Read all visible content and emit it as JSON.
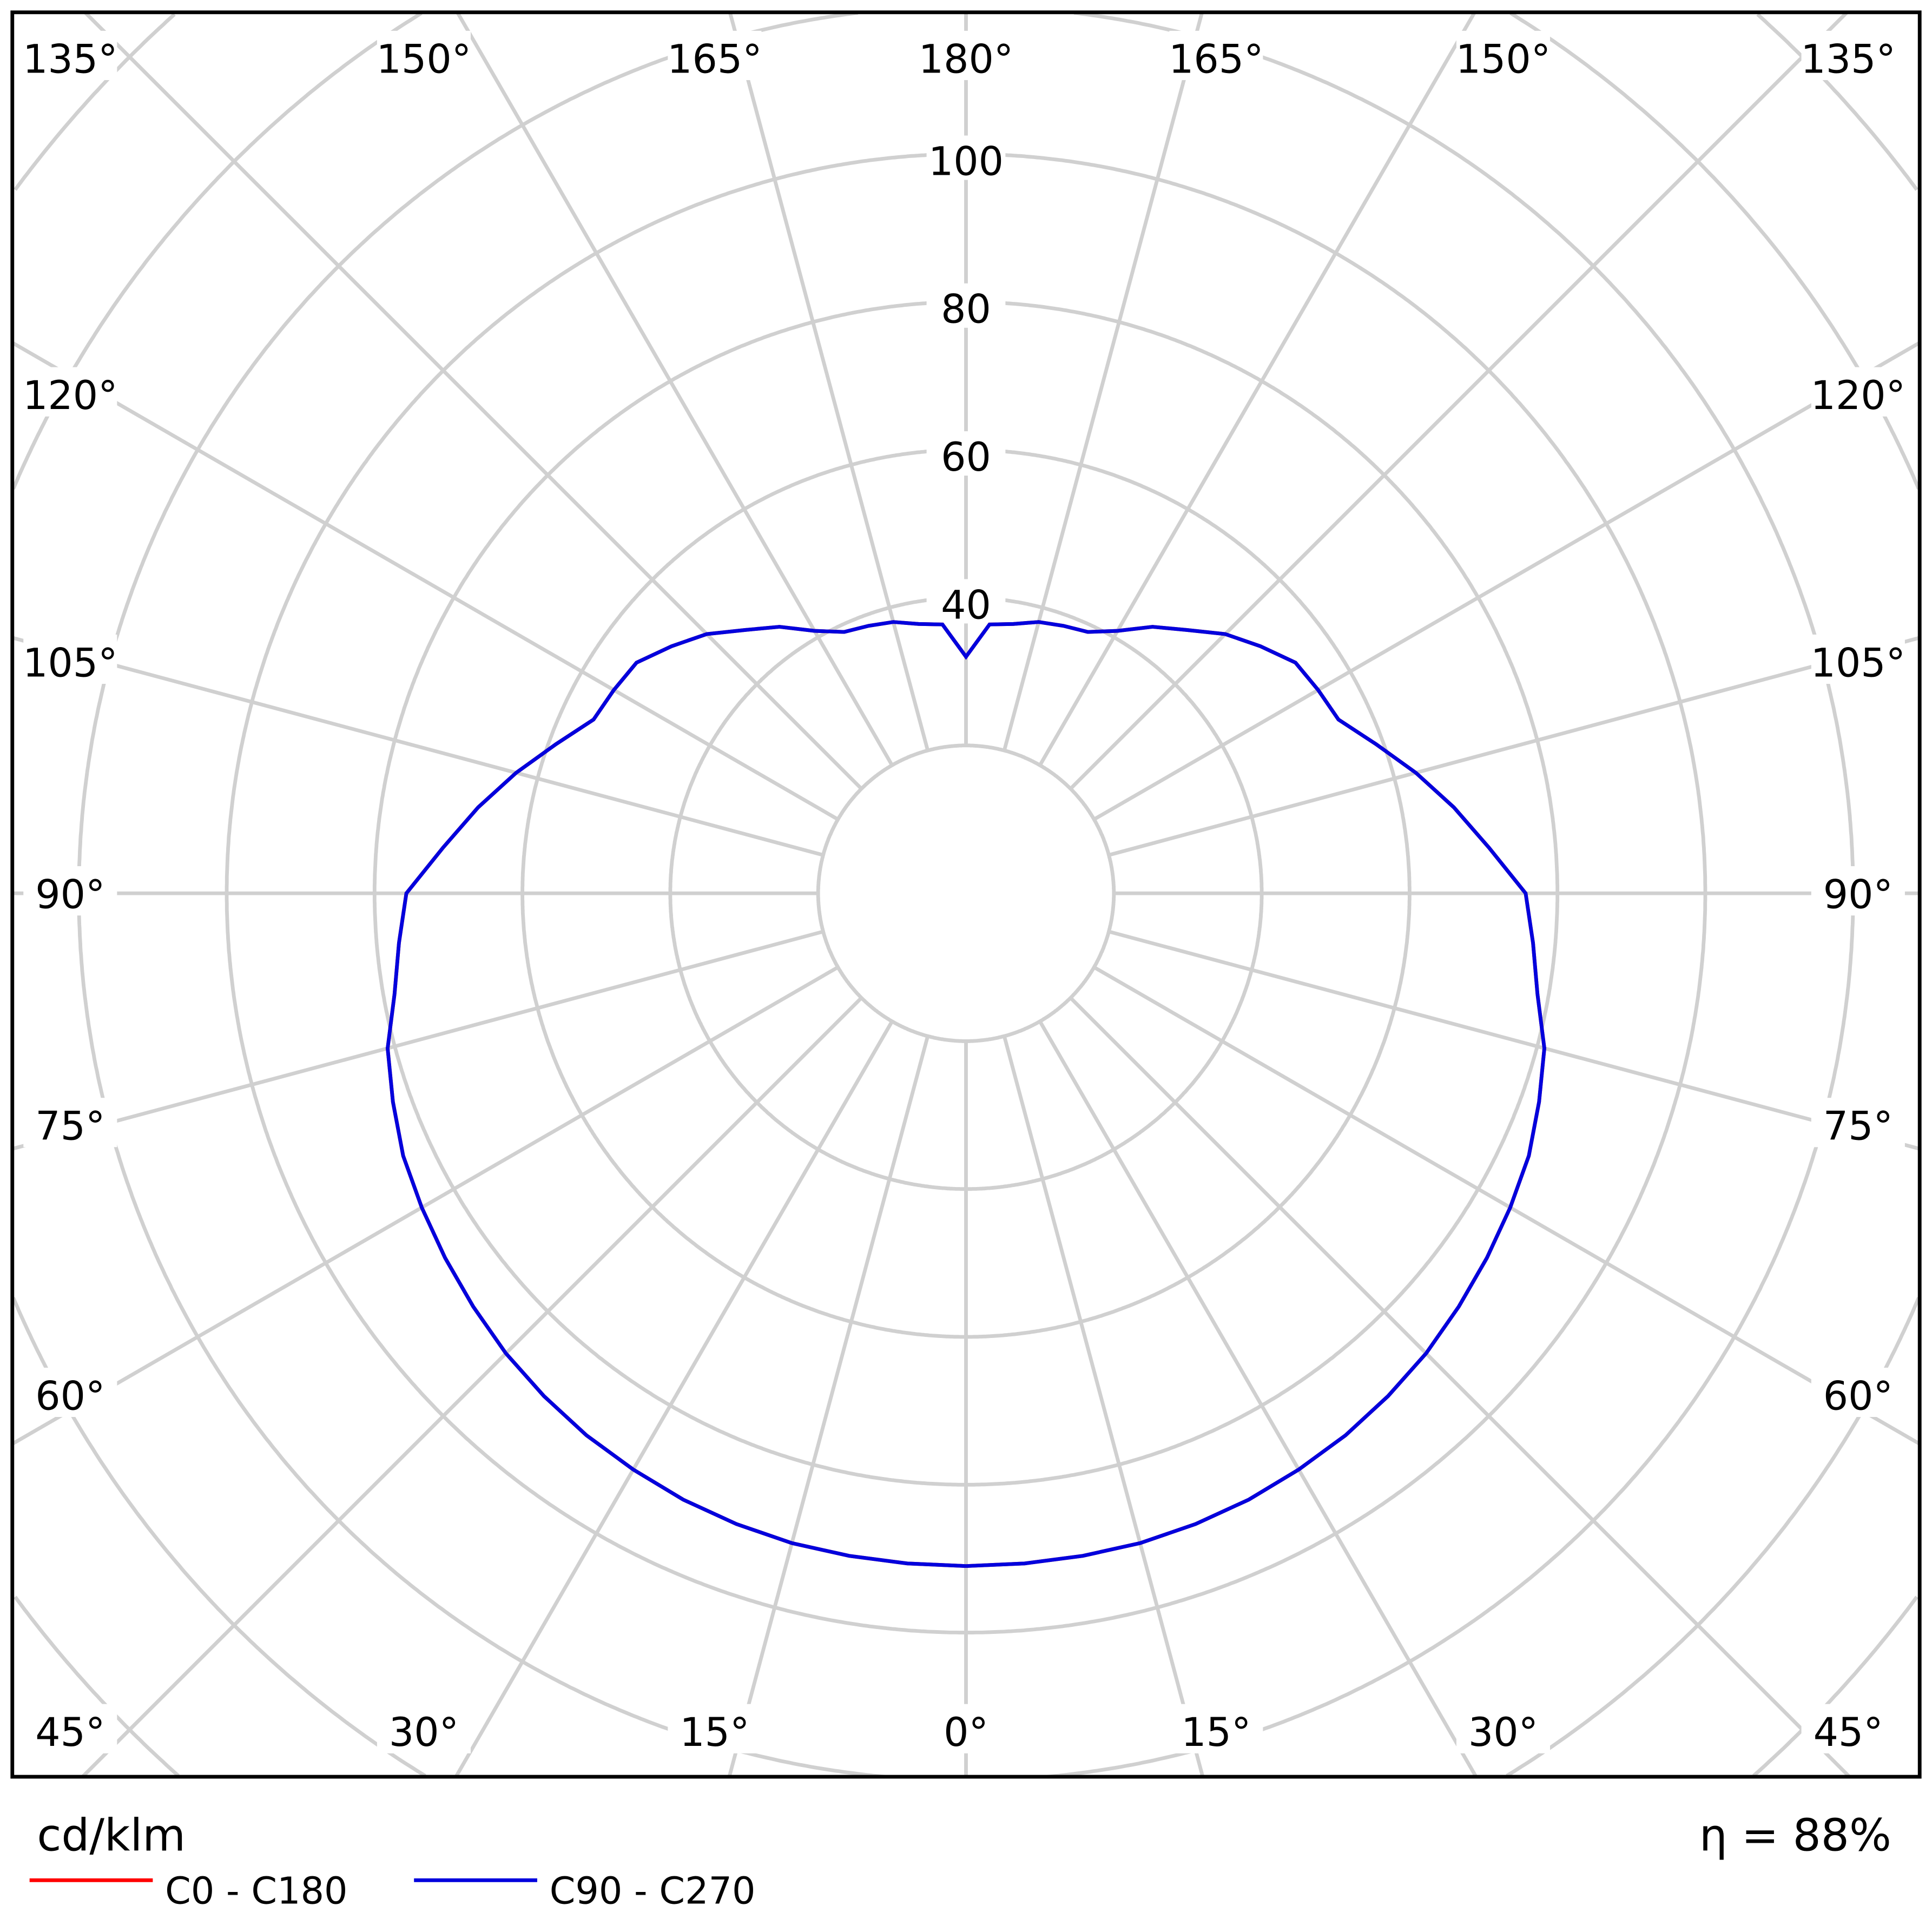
{
  "chart_data": {
    "type": "polar",
    "unit_label": "cd/klm",
    "efficiency_label": "η = 88%",
    "radial_ticks": [
      40,
      60,
      80,
      100
    ],
    "radial_rings": [
      20,
      40,
      60,
      80,
      100,
      120,
      140,
      160,
      180,
      200
    ],
    "angle_labels": {
      "top": [
        "135°",
        "150°",
        "165°",
        "180°",
        "165°",
        "150°",
        "135°"
      ],
      "left": [
        "120°",
        "105°",
        "90°",
        "75°",
        "60°"
      ],
      "right": [
        "120°",
        "105°",
        "90°",
        "75°",
        "60°"
      ],
      "bottom": [
        "45°",
        "30°",
        "15°",
        "0°",
        "15°",
        "30°",
        "45°"
      ]
    },
    "grid": true,
    "legend_placement": "bottom-left",
    "gamma": [
      0,
      5,
      10,
      15,
      20,
      25,
      30,
      35,
      40,
      45,
      50,
      55,
      60,
      65,
      70,
      75,
      80,
      85,
      90,
      95,
      100,
      105,
      110,
      115,
      120,
      125,
      130,
      135,
      140,
      145,
      150,
      155,
      160,
      165,
      170,
      175,
      180
    ],
    "series": [
      {
        "name": "C0 - C180",
        "color": "#ff0000",
        "values": [
          91,
          91,
          91,
          91,
          90.8,
          90.5,
          90,
          89.5,
          88.8,
          88,
          87,
          86,
          85,
          84,
          82.5,
          81,
          78.5,
          77,
          75.7,
          71,
          67,
          63,
          59,
          55.6,
          55,
          54.4,
          52,
          49.6,
          46.5,
          44,
          41,
          39,
          38.5,
          38,
          37,
          36.5,
          32
        ]
      },
      {
        "name": "C90 - C270",
        "color": "#0000dd",
        "values": [
          91,
          91,
          91,
          91,
          90.8,
          90.5,
          90,
          89.5,
          88.8,
          88,
          87,
          86,
          85,
          84,
          82.5,
          81,
          78.5,
          77,
          75.7,
          71,
          67,
          63,
          59,
          55.6,
          55,
          54.4,
          52,
          49.6,
          46.5,
          44,
          41,
          39,
          38.5,
          38,
          37,
          36.5,
          32
        ]
      }
    ]
  }
}
